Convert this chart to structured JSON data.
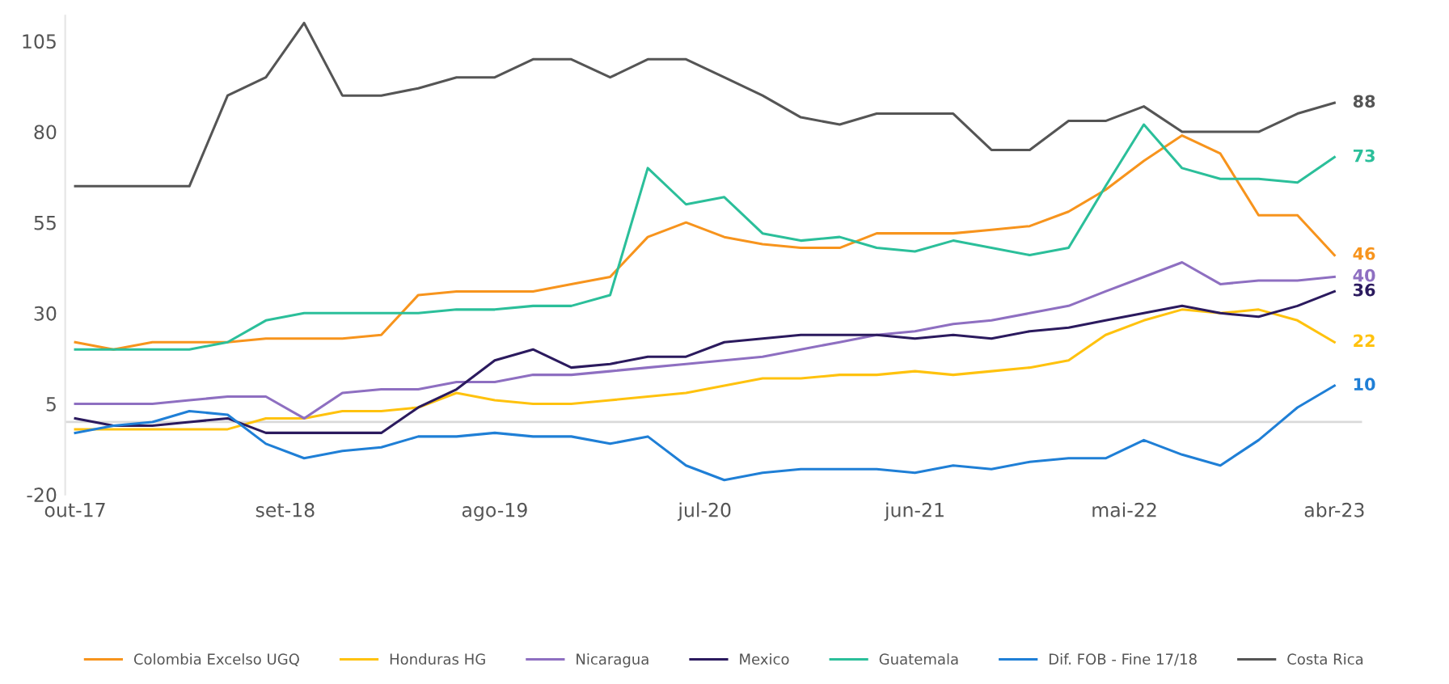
{
  "chart_data": {
    "type": "line",
    "x": [
      "2017-10",
      "2017-12",
      "2018-02",
      "2018-04",
      "2018-06",
      "2018-08",
      "2018-10",
      "2018-12",
      "2019-02",
      "2019-04",
      "2019-06",
      "2019-08",
      "2019-10",
      "2019-12",
      "2020-02",
      "2020-04",
      "2020-06",
      "2020-08",
      "2020-10",
      "2020-12",
      "2021-02",
      "2021-04",
      "2021-06",
      "2021-08",
      "2021-10",
      "2021-12",
      "2022-02",
      "2022-04",
      "2022-06",
      "2022-08",
      "2022-10",
      "2022-12",
      "2023-02",
      "2023-04"
    ],
    "series": [
      {
        "name": "Colombia Excelso UGQ",
        "color": "#f7941d",
        "values": [
          22,
          20,
          22,
          22,
          22,
          23,
          23,
          23,
          24,
          35,
          36,
          36,
          36,
          38,
          40,
          51,
          55,
          51,
          49,
          48,
          48,
          52,
          52,
          52,
          53,
          54,
          58,
          64,
          72,
          79,
          74,
          57,
          57,
          46
        ],
        "value_labels": [
          null,
          null,
          null,
          null,
          null,
          null,
          null,
          null,
          null,
          null,
          null,
          null,
          null,
          null,
          null,
          null,
          null,
          null,
          null,
          null,
          null,
          null,
          null,
          null,
          null,
          null,
          null,
          null,
          null,
          null,
          null,
          null,
          null,
          "46"
        ]
      },
      {
        "name": "Honduras HG",
        "color": "#ffc20e",
        "values": [
          -2,
          -2,
          -2,
          -2,
          -2,
          1,
          1,
          3,
          3,
          4,
          8,
          6,
          5,
          5,
          6,
          7,
          8,
          10,
          12,
          12,
          13,
          13,
          14,
          13,
          14,
          15,
          17,
          24,
          28,
          31,
          30,
          31,
          28,
          22
        ],
        "value_labels": [
          null,
          null,
          null,
          null,
          null,
          null,
          null,
          null,
          null,
          null,
          null,
          null,
          null,
          null,
          null,
          null,
          null,
          null,
          null,
          null,
          null,
          null,
          null,
          null,
          null,
          null,
          null,
          null,
          null,
          null,
          null,
          null,
          null,
          "22"
        ]
      },
      {
        "name": "Nicaragua",
        "color": "#8e6fc1",
        "values": [
          5,
          5,
          5,
          6,
          7,
          7,
          1,
          8,
          9,
          9,
          11,
          11,
          13,
          13,
          14,
          15,
          16,
          17,
          18,
          20,
          22,
          24,
          25,
          27,
          28,
          30,
          32,
          36,
          40,
          44,
          38,
          39,
          39,
          40
        ],
        "value_labels": [
          null,
          null,
          null,
          null,
          null,
          null,
          null,
          null,
          null,
          null,
          null,
          null,
          null,
          null,
          null,
          null,
          null,
          null,
          null,
          null,
          null,
          null,
          null,
          null,
          null,
          null,
          null,
          null,
          null,
          null,
          null,
          null,
          null,
          "40"
        ]
      },
      {
        "name": "Mexico",
        "color": "#2b1a5e",
        "values": [
          1,
          -1,
          -1,
          0,
          1,
          -3,
          -3,
          -3,
          -3,
          4,
          9,
          17,
          20,
          15,
          16,
          18,
          18,
          22,
          23,
          24,
          24,
          24,
          23,
          24,
          23,
          25,
          26,
          28,
          30,
          32,
          30,
          29,
          32,
          36
        ],
        "value_labels": [
          null,
          null,
          null,
          null,
          null,
          null,
          null,
          null,
          null,
          null,
          null,
          null,
          null,
          null,
          null,
          null,
          null,
          null,
          null,
          null,
          null,
          null,
          null,
          null,
          null,
          null,
          null,
          null,
          null,
          null,
          null,
          null,
          null,
          "36"
        ]
      },
      {
        "name": "Guatemala",
        "color": "#2bbf9a",
        "values": [
          20,
          20,
          20,
          20,
          22,
          28,
          30,
          30,
          30,
          30,
          31,
          31,
          32,
          32,
          35,
          70,
          60,
          62,
          52,
          50,
          51,
          48,
          47,
          50,
          48,
          46,
          48,
          65,
          82,
          70,
          67,
          67,
          66,
          73
        ],
        "value_labels": [
          null,
          null,
          null,
          null,
          null,
          null,
          null,
          null,
          null,
          null,
          null,
          null,
          null,
          null,
          null,
          null,
          null,
          null,
          null,
          null,
          null,
          null,
          null,
          null,
          null,
          null,
          null,
          null,
          null,
          null,
          null,
          null,
          null,
          "73"
        ]
      },
      {
        "name": "Dif. FOB - Fine 17/18",
        "color": "#1f7fd6",
        "values": [
          -3,
          -1,
          0,
          3,
          2,
          -6,
          -10,
          -8,
          -7,
          -4,
          -4,
          -3,
          -4,
          -4,
          -6,
          -4,
          -12,
          -16,
          -14,
          -13,
          -13,
          -13,
          -14,
          -12,
          -13,
          -11,
          -10,
          -10,
          -5,
          -9,
          -12,
          -5,
          4,
          10
        ],
        "value_labels": [
          null,
          null,
          null,
          null,
          null,
          null,
          null,
          null,
          null,
          null,
          null,
          null,
          null,
          null,
          null,
          null,
          null,
          null,
          null,
          null,
          null,
          null,
          null,
          null,
          null,
          null,
          null,
          null,
          null,
          null,
          null,
          null,
          null,
          "10"
        ]
      },
      {
        "name": "Costa Rica",
        "color": "#555555",
        "values": [
          65,
          65,
          65,
          65,
          90,
          95,
          110,
          90,
          90,
          92,
          95,
          95,
          100,
          100,
          95,
          100,
          100,
          95,
          90,
          84,
          82,
          85,
          85,
          85,
          75,
          75,
          83,
          83,
          87,
          80,
          80,
          80,
          85,
          88
        ],
        "value_labels": [
          null,
          null,
          null,
          null,
          null,
          null,
          null,
          null,
          null,
          null,
          null,
          null,
          null,
          null,
          null,
          null,
          null,
          null,
          null,
          null,
          null,
          null,
          null,
          null,
          null,
          null,
          null,
          null,
          null,
          null,
          null,
          null,
          null,
          "88"
        ]
      }
    ],
    "xlim": [
      "2017-09-15",
      "2023-05-15"
    ],
    "xticks": [
      {
        "value": "2017-10",
        "label": "out-17"
      },
      {
        "value": "2018-09",
        "label": "set-18"
      },
      {
        "value": "2019-08",
        "label": "ago-19"
      },
      {
        "value": "2020-07",
        "label": "jul-20"
      },
      {
        "value": "2021-06",
        "label": "jun-21"
      },
      {
        "value": "2022-05",
        "label": "mai-22"
      },
      {
        "value": "2023-04",
        "label": "abr-23"
      }
    ],
    "ylim": [
      -20,
      112
    ],
    "yticks": [
      -20,
      5,
      30,
      55,
      80,
      105
    ],
    "ref_lines": [
      {
        "axis": "y",
        "value": 0,
        "label": null,
        "color": "#d9d9d9"
      }
    ],
    "grid": false,
    "legend": "bottom",
    "marker": "none",
    "line_style": "solid"
  }
}
